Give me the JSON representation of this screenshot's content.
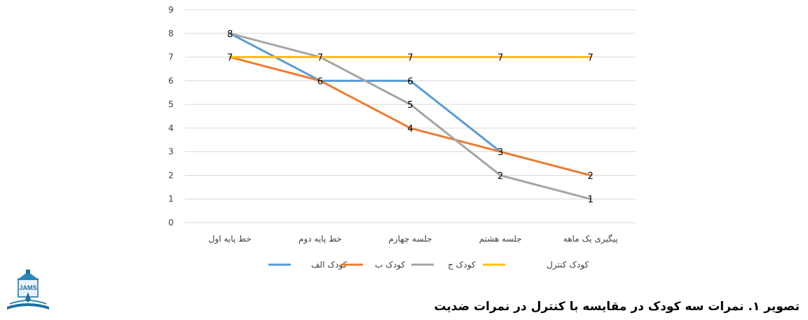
{
  "chart_data": {
    "type": "line",
    "categories": [
      "خط پایه اول",
      "خط پایه دوم",
      "جلسه چهارم",
      "جلسه هشتم",
      "پیگیری یک ماهه"
    ],
    "series": [
      {
        "name": "کودک الف",
        "color": "#5B9BD5",
        "values": [
          8,
          6,
          6,
          3,
          2
        ]
      },
      {
        "name": "کودک ب",
        "color": "#ED7D31",
        "values": [
          7,
          6,
          4,
          3,
          2
        ]
      },
      {
        "name": "کودک ج",
        "color": "#A5A5A5",
        "values": [
          8,
          7,
          5,
          2,
          1
        ]
      },
      {
        "name": "کودک کنترل",
        "color": "#FFC000",
        "values": [
          7,
          7,
          7,
          7,
          7
        ]
      }
    ],
    "ylim": [
      0,
      9
    ],
    "yticks": [
      "0",
      "1",
      "2",
      "3",
      "4",
      "5",
      "6",
      "7",
      "8",
      "9"
    ],
    "grid": true,
    "legend_position": "bottom",
    "data_labels": [
      {
        "text": "8",
        "ci": 0,
        "y": 8
      },
      {
        "text": "7",
        "ci": 0,
        "y": 7
      },
      {
        "text": "6",
        "ci": 1,
        "y": 6
      },
      {
        "text": "7",
        "ci": 1,
        "y": 7
      },
      {
        "text": "6",
        "ci": 2,
        "y": 6
      },
      {
        "text": "4",
        "ci": 2,
        "y": 4
      },
      {
        "text": "5",
        "ci": 2,
        "y": 5
      },
      {
        "text": "7",
        "ci": 2,
        "y": 7
      },
      {
        "text": "3",
        "ci": 3,
        "y": 3
      },
      {
        "text": "2",
        "ci": 3,
        "y": 2
      },
      {
        "text": "7",
        "ci": 3,
        "y": 7
      },
      {
        "text": "2",
        "ci": 4,
        "y": 2
      },
      {
        "text": "1",
        "ci": 4,
        "y": 1
      },
      {
        "text": "7",
        "ci": 4,
        "y": 7
      }
    ]
  },
  "caption": "تصویر ۱. نمرات سه کودک در مقایسه با کنترل در نمرات ضدیت",
  "logo": {
    "text": "JAMS",
    "icon": "journal-logo-icon"
  }
}
